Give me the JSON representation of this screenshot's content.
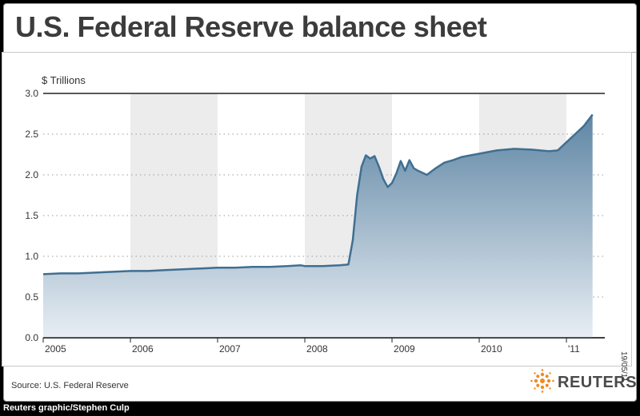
{
  "title": "U.S. Federal Reserve balance sheet",
  "source": "Source: U.S. Federal Reserve",
  "credit": "Reuters graphic/Stephen Culp",
  "date_stamp": "19/05/11",
  "logo_text": "REUTERS",
  "colors": {
    "line": "#3f6f92",
    "fill_top": "#5f86a4",
    "fill_bottom": "#e8eef4",
    "band": "#ececec",
    "title": "#3c3c3c"
  },
  "chart_data": {
    "type": "area",
    "title": "U.S. Federal Reserve balance sheet",
    "ylabel": "$ Trillions",
    "xlabel": "",
    "ylim": [
      0,
      3.0
    ],
    "xlim": [
      2005.0,
      2011.33
    ],
    "yticks": [
      "0.0",
      "0.5",
      "1.0",
      "1.5",
      "2.0",
      "2.5",
      "3.0"
    ],
    "ytick_values": [
      0,
      0.5,
      1.0,
      1.5,
      2.0,
      2.5,
      3.0
    ],
    "xticks": [
      "2005",
      "2006",
      "2007",
      "2008",
      "2009",
      "2010",
      "'11"
    ],
    "xtick_values": [
      2005,
      2006,
      2007,
      2008,
      2009,
      2010,
      2011
    ],
    "grid": "horizontal dotted",
    "shaded_years": [
      [
        2006,
        2007
      ],
      [
        2008,
        2009
      ],
      [
        2010,
        2011
      ]
    ],
    "series": [
      {
        "x": [
          2005.0,
          2005.2,
          2005.4,
          2005.6,
          2005.8,
          2006.0,
          2006.2,
          2006.4,
          2006.6,
          2006.8,
          2007.0,
          2007.2,
          2007.4,
          2007.6,
          2007.8,
          2007.95,
          2008.0,
          2008.2,
          2008.4,
          2008.5,
          2008.55,
          2008.6,
          2008.65,
          2008.7,
          2008.75,
          2008.8,
          2008.85,
          2008.9,
          2008.95,
          2009.0,
          2009.05,
          2009.1,
          2009.15,
          2009.2,
          2009.25,
          2009.3,
          2009.4,
          2009.5,
          2009.6,
          2009.7,
          2009.8,
          2009.9,
          2010.0,
          2010.2,
          2010.4,
          2010.6,
          2010.8,
          2010.9,
          2011.0,
          2011.1,
          2011.2,
          2011.3
        ],
        "values": [
          0.78,
          0.79,
          0.79,
          0.8,
          0.81,
          0.82,
          0.82,
          0.83,
          0.84,
          0.85,
          0.86,
          0.86,
          0.87,
          0.87,
          0.88,
          0.89,
          0.88,
          0.88,
          0.89,
          0.9,
          1.2,
          1.75,
          2.1,
          2.24,
          2.2,
          2.23,
          2.1,
          1.95,
          1.85,
          1.9,
          2.02,
          2.17,
          2.05,
          2.18,
          2.08,
          2.05,
          2.0,
          2.08,
          2.15,
          2.18,
          2.22,
          2.24,
          2.26,
          2.3,
          2.32,
          2.31,
          2.29,
          2.3,
          2.4,
          2.5,
          2.6,
          2.74
        ]
      }
    ]
  }
}
